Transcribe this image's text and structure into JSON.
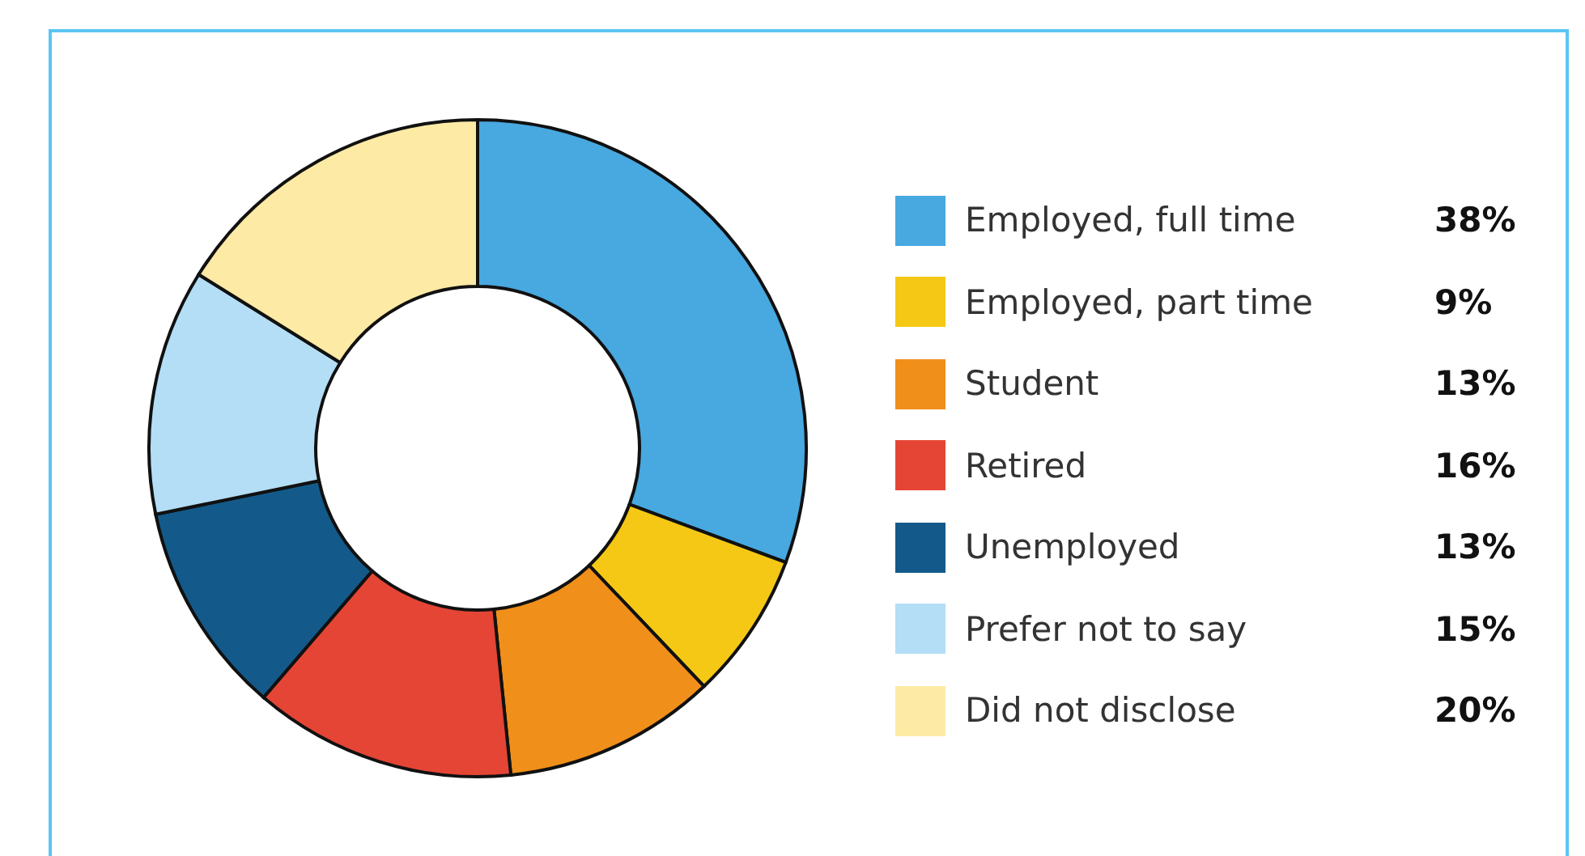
{
  "chart_data": {
    "type": "donut",
    "categories": [
      "Employed, full time",
      "Employed, part time",
      "Student",
      "Retired",
      "Unemployed",
      "Prefer not to say",
      "Did not disclose"
    ],
    "values": [
      38,
      9,
      13,
      16,
      13,
      15,
      20
    ],
    "value_labels": [
      "38%",
      "9%",
      "13%",
      "16%",
      "13%",
      "15%",
      "20%"
    ],
    "colors": [
      "#48a8e0",
      "#f5c816",
      "#f18f1b",
      "#e54535",
      "#135a8a",
      "#b3def5",
      "#fdeaa4"
    ],
    "legend": "right"
  }
}
